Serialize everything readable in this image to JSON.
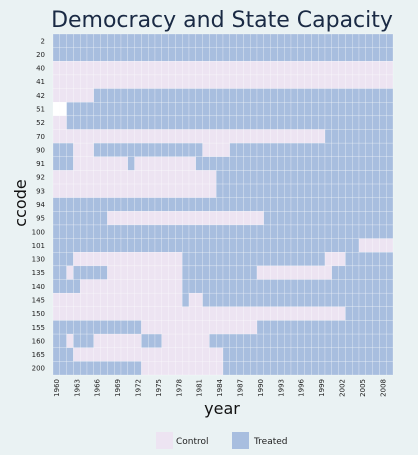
{
  "chart_data": {
    "type": "heatmap",
    "title": "Democracy and State Capacity",
    "xlabel": "year",
    "ylabel": "ccode",
    "x_start": 1960,
    "x_end": 2009,
    "x_ticks": [
      "1960",
      "1963",
      "1966",
      "1969",
      "1972",
      "1975",
      "1978",
      "1981",
      "1984",
      "1987",
      "1990",
      "1993",
      "1996",
      "1999",
      "2002",
      "2005",
      "2008"
    ],
    "y_categories": [
      "2",
      "20",
      "40",
      "41",
      "42",
      "51",
      "52",
      "70",
      "90",
      "91",
      "92",
      "93",
      "94",
      "95",
      "100",
      "101",
      "130",
      "135",
      "140",
      "145",
      "150",
      "155",
      "160",
      "165",
      "200"
    ],
    "legend": [
      {
        "label": "Control",
        "color": "#ede4f2"
      },
      {
        "label": "Treated",
        "color": "#a8bedf"
      }
    ],
    "missing_color": "#ffffff",
    "grid": true,
    "legend_position": "bottom",
    "status_legend": "runs per row: [status, startYear, endYear]; 0 = Control, 1 = Treated, -1 = missing (blank)",
    "runs": [
      [
        [
          1,
          1960,
          2009
        ]
      ],
      [
        [
          1,
          1960,
          2009
        ]
      ],
      [
        [
          0,
          1960,
          2009
        ]
      ],
      [
        [
          0,
          1960,
          2009
        ]
      ],
      [
        [
          0,
          1960,
          1965
        ],
        [
          1,
          1966,
          2009
        ]
      ],
      [
        [
          -1,
          1960,
          1961
        ],
        [
          1,
          1962,
          2009
        ]
      ],
      [
        [
          0,
          1960,
          1961
        ],
        [
          1,
          1962,
          2009
        ]
      ],
      [
        [
          0,
          1960,
          1999
        ],
        [
          1,
          2000,
          2009
        ]
      ],
      [
        [
          1,
          1960,
          1962
        ],
        [
          0,
          1963,
          1965
        ],
        [
          1,
          1966,
          1981
        ],
        [
          0,
          1982,
          1985
        ],
        [
          1,
          1986,
          2009
        ]
      ],
      [
        [
          1,
          1960,
          1962
        ],
        [
          0,
          1963,
          1970
        ],
        [
          1,
          1971,
          1971
        ],
        [
          0,
          1972,
          1980
        ],
        [
          1,
          1981,
          2009
        ]
      ],
      [
        [
          0,
          1960,
          1983
        ],
        [
          1,
          1984,
          2009
        ]
      ],
      [
        [
          0,
          1960,
          1983
        ],
        [
          1,
          1984,
          2009
        ]
      ],
      [
        [
          1,
          1960,
          2009
        ]
      ],
      [
        [
          1,
          1960,
          1967
        ],
        [
          0,
          1968,
          1990
        ],
        [
          1,
          1991,
          2009
        ]
      ],
      [
        [
          1,
          1960,
          2009
        ]
      ],
      [
        [
          1,
          1960,
          2004
        ],
        [
          0,
          2005,
          2009
        ]
      ],
      [
        [
          1,
          1960,
          1962
        ],
        [
          0,
          1963,
          1978
        ],
        [
          1,
          1979,
          1999
        ],
        [
          0,
          2000,
          2002
        ],
        [
          1,
          2003,
          2009
        ]
      ],
      [
        [
          1,
          1960,
          1961
        ],
        [
          0,
          1962,
          1962
        ],
        [
          1,
          1963,
          1967
        ],
        [
          0,
          1968,
          1978
        ],
        [
          1,
          1979,
          1989
        ],
        [
          0,
          1990,
          2000
        ],
        [
          1,
          2001,
          2009
        ]
      ],
      [
        [
          1,
          1960,
          1963
        ],
        [
          0,
          1964,
          1978
        ],
        [
          1,
          1979,
          2009
        ]
      ],
      [
        [
          0,
          1960,
          1978
        ],
        [
          1,
          1979,
          1979
        ],
        [
          0,
          1980,
          1981
        ],
        [
          1,
          1982,
          2009
        ]
      ],
      [
        [
          0,
          1960,
          2002
        ],
        [
          1,
          2003,
          2009
        ]
      ],
      [
        [
          1,
          1960,
          1972
        ],
        [
          0,
          1973,
          1989
        ],
        [
          1,
          1990,
          2009
        ]
      ],
      [
        [
          1,
          1960,
          1961
        ],
        [
          0,
          1962,
          1962
        ],
        [
          1,
          1963,
          1965
        ],
        [
          0,
          1966,
          1972
        ],
        [
          1,
          1973,
          1975
        ],
        [
          0,
          1976,
          1982
        ],
        [
          1,
          1983,
          2009
        ]
      ],
      [
        [
          1,
          1960,
          1962
        ],
        [
          0,
          1963,
          1984
        ],
        [
          1,
          1985,
          2009
        ]
      ],
      [
        [
          1,
          1960,
          1972
        ],
        [
          0,
          1973,
          1984
        ],
        [
          1,
          1985,
          2009
        ]
      ]
    ]
  }
}
